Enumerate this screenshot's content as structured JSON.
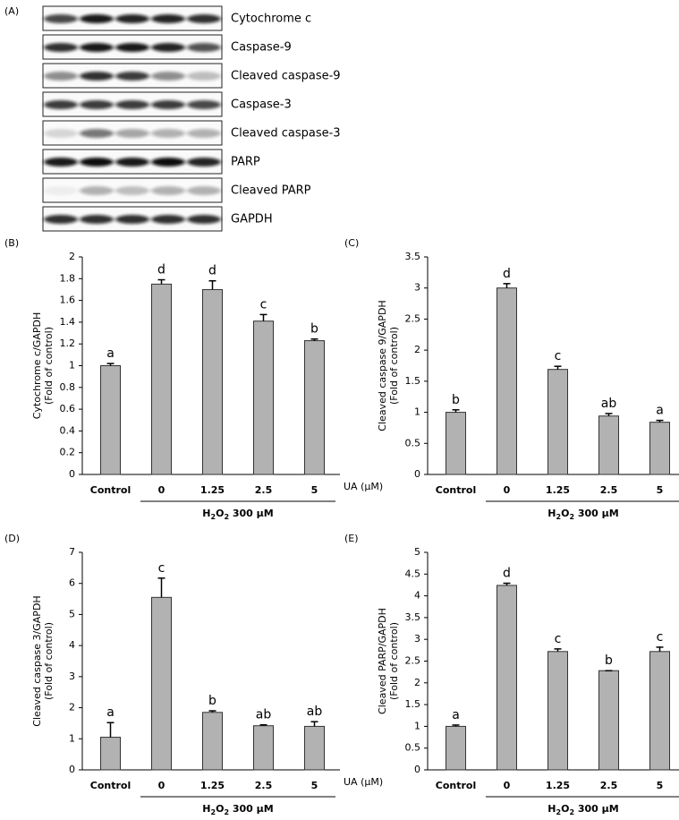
{
  "blot": {
    "label": "(A)",
    "rows": [
      "Cytochrome c",
      "Caspase-9",
      "Cleaved caspase-9",
      "Caspase-3",
      "Cleaved caspase-3",
      "PARP",
      "Cleaved PARP",
      "GAPDH"
    ]
  },
  "chart_data": [
    {
      "type": "bar",
      "label": "(B)",
      "ylabel": [
        "Cytochrome c/GAPDH",
        "(Fold of control)"
      ],
      "categories": [
        "Control",
        "0",
        "1.25",
        "2.5",
        "5"
      ],
      "x_unit_label": "UA (μM)",
      "group_label": [
        {
          "text": "H"
        },
        {
          "text": "2",
          "sub": true
        },
        {
          "text": "O"
        },
        {
          "text": "2",
          "sub": true
        },
        {
          "text": "  300 μM"
        }
      ],
      "values": [
        1.0,
        1.75,
        1.7,
        1.41,
        1.23
      ],
      "errors": [
        0.02,
        0.04,
        0.08,
        0.06,
        0.015
      ],
      "letters": [
        "a",
        "d",
        "d",
        "c",
        "b"
      ],
      "color": "#b2b2b2",
      "ylim": [
        0,
        2
      ],
      "yticks": [
        0,
        0.2,
        0.4,
        0.6,
        0.8,
        1,
        1.2,
        1.4,
        1.6,
        1.8,
        2
      ]
    },
    {
      "type": "bar",
      "label": "(C)",
      "ylabel": [
        "Cleaved caspase 9/GAPDH",
        "(Fold of control)"
      ],
      "categories": [
        "Control",
        "0",
        "1.25",
        "2.5",
        "5"
      ],
      "x_unit_label": "UA (μM)",
      "group_label": [
        {
          "text": "H"
        },
        {
          "text": "2",
          "sub": true
        },
        {
          "text": "O"
        },
        {
          "text": "2",
          "sub": true
        },
        {
          "text": "  300 μM"
        }
      ],
      "values": [
        1.0,
        3.0,
        1.69,
        0.94,
        0.84
      ],
      "errors": [
        0.04,
        0.07,
        0.05,
        0.04,
        0.03
      ],
      "letters": [
        "b",
        "d",
        "c",
        "ab",
        "a"
      ],
      "color": "#b2b2b2",
      "ylim": [
        0,
        3.5
      ],
      "yticks": [
        0,
        0.5,
        1,
        1.5,
        2,
        2.5,
        3,
        3.5
      ]
    },
    {
      "type": "bar",
      "label": "(D)",
      "ylabel": [
        "Cleaved caspase 3/GAPDH",
        "(Fold of control)"
      ],
      "categories": [
        "Control",
        "0",
        "1.25",
        "2.5",
        "5"
      ],
      "x_unit_label": "UA (μM)",
      "group_label": [
        {
          "text": "H"
        },
        {
          "text": "2",
          "sub": true
        },
        {
          "text": "O"
        },
        {
          "text": "2",
          "sub": true
        },
        {
          "text": "  300 μM"
        }
      ],
      "values": [
        1.05,
        5.55,
        1.85,
        1.42,
        1.4
      ],
      "errors": [
        0.47,
        0.62,
        0.05,
        0.03,
        0.15
      ],
      "letters": [
        "a",
        "c",
        "b",
        "ab",
        "ab"
      ],
      "color": "#b2b2b2",
      "ylim": [
        0,
        7
      ],
      "yticks": [
        0,
        1,
        2,
        3,
        4,
        5,
        6,
        7
      ]
    },
    {
      "type": "bar",
      "label": "(E)",
      "ylabel": [
        "Cleaved PARP/GAPDH",
        "(Fold of control)"
      ],
      "categories": [
        "Control",
        "0",
        "1.25",
        "2.5",
        "5"
      ],
      "x_unit_label": "UA (μM)",
      "group_label": [
        {
          "text": "H"
        },
        {
          "text": "2",
          "sub": true
        },
        {
          "text": "O"
        },
        {
          "text": "2",
          "sub": true
        },
        {
          "text": "  300 μM"
        }
      ],
      "values": [
        1.0,
        4.24,
        2.72,
        2.28,
        2.72
      ],
      "errors": [
        0.03,
        0.05,
        0.06,
        0,
        0.1
      ],
      "letters": [
        "a",
        "d",
        "c",
        "b",
        "c"
      ],
      "color": "#b2b2b2",
      "ylim": [
        0,
        5
      ],
      "yticks": [
        0,
        0.5,
        1,
        1.5,
        2,
        2.5,
        3,
        3.5,
        4,
        4.5,
        5
      ]
    }
  ]
}
